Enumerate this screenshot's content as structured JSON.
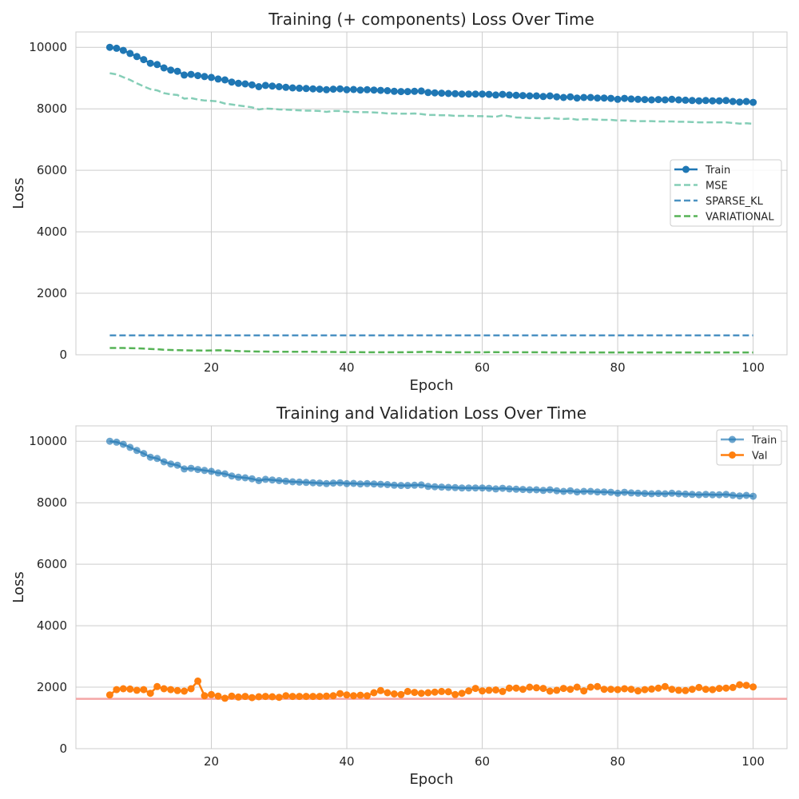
{
  "colors": {
    "train": "#1f77b4",
    "mse": "#66c2a5",
    "sparse_kl": "#1f77b4",
    "variational": "#2ca02c",
    "val": "#ff7f0e",
    "baseline": "#f4a6a6"
  },
  "chart_data": [
    {
      "type": "line",
      "title": "Training (+ components) Loss Over Time",
      "xlabel": "Epoch",
      "ylabel": "Loss",
      "xlim": [
        0,
        105
      ],
      "ylim": [
        0,
        10500
      ],
      "xticks": [
        20,
        40,
        60,
        80,
        100
      ],
      "yticks": [
        0,
        2000,
        4000,
        6000,
        8000,
        10000
      ],
      "grid": true,
      "legend": "center-right",
      "x": [
        5,
        6,
        7,
        8,
        9,
        10,
        11,
        12,
        13,
        14,
        15,
        16,
        17,
        18,
        19,
        20,
        21,
        22,
        23,
        24,
        25,
        26,
        27,
        28,
        29,
        30,
        31,
        32,
        33,
        34,
        35,
        36,
        37,
        38,
        39,
        40,
        41,
        42,
        43,
        44,
        45,
        46,
        47,
        48,
        49,
        50,
        51,
        52,
        53,
        54,
        55,
        56,
        57,
        58,
        59,
        60,
        61,
        62,
        63,
        64,
        65,
        66,
        67,
        68,
        69,
        70,
        71,
        72,
        73,
        74,
        75,
        76,
        77,
        78,
        79,
        80,
        81,
        82,
        83,
        84,
        85,
        86,
        87,
        88,
        89,
        90,
        91,
        92,
        93,
        94,
        95,
        96,
        97,
        98,
        99,
        100
      ],
      "series": [
        {
          "name": "Train",
          "key": "train",
          "style": "solid-marker",
          "values": [
            10000,
            9970,
            9900,
            9800,
            9700,
            9600,
            9480,
            9440,
            9330,
            9260,
            9220,
            9100,
            9120,
            9080,
            9050,
            9020,
            8970,
            8940,
            8870,
            8830,
            8810,
            8780,
            8720,
            8760,
            8740,
            8720,
            8700,
            8680,
            8670,
            8660,
            8650,
            8640,
            8620,
            8640,
            8650,
            8620,
            8630,
            8610,
            8620,
            8610,
            8600,
            8590,
            8570,
            8560,
            8560,
            8570,
            8580,
            8530,
            8520,
            8510,
            8500,
            8490,
            8480,
            8480,
            8480,
            8480,
            8470,
            8450,
            8470,
            8450,
            8440,
            8430,
            8420,
            8420,
            8400,
            8420,
            8390,
            8370,
            8390,
            8350,
            8370,
            8370,
            8350,
            8350,
            8340,
            8310,
            8340,
            8320,
            8310,
            8300,
            8290,
            8300,
            8290,
            8310,
            8290,
            8280,
            8270,
            8260,
            8270,
            8260,
            8260,
            8270,
            8240,
            8220,
            8240,
            8210
          ]
        },
        {
          "name": "MSE",
          "key": "mse",
          "style": "dashed",
          "values": [
            9160,
            9120,
            9030,
            8940,
            8830,
            8730,
            8640,
            8600,
            8510,
            8470,
            8450,
            8330,
            8350,
            8300,
            8270,
            8260,
            8240,
            8170,
            8140,
            8110,
            8080,
            8050,
            7980,
            8010,
            8000,
            7980,
            7970,
            7960,
            7950,
            7940,
            7940,
            7930,
            7900,
            7930,
            7930,
            7900,
            7900,
            7890,
            7890,
            7880,
            7870,
            7850,
            7850,
            7840,
            7840,
            7850,
            7830,
            7800,
            7800,
            7790,
            7790,
            7770,
            7770,
            7770,
            7760,
            7760,
            7750,
            7740,
            7790,
            7760,
            7720,
            7710,
            7700,
            7700,
            7690,
            7700,
            7680,
            7670,
            7680,
            7650,
            7660,
            7660,
            7650,
            7640,
            7640,
            7620,
            7620,
            7610,
            7600,
            7600,
            7600,
            7590,
            7590,
            7590,
            7580,
            7580,
            7570,
            7560,
            7560,
            7560,
            7560,
            7560,
            7540,
            7520,
            7530,
            7510
          ]
        },
        {
          "name": "SPARSE_KL",
          "key": "sparse_kl",
          "style": "dashed",
          "values": [
            630,
            630,
            630,
            630,
            630,
            630,
            630,
            630,
            630,
            630,
            630,
            630,
            630,
            630,
            630,
            630,
            630,
            630,
            630,
            630,
            630,
            630,
            630,
            630,
            630,
            630,
            630,
            630,
            630,
            630,
            630,
            630,
            630,
            630,
            630,
            630,
            630,
            630,
            630,
            630,
            630,
            630,
            630,
            630,
            630,
            630,
            630,
            630,
            630,
            630,
            630,
            630,
            630,
            630,
            630,
            630,
            630,
            630,
            630,
            630,
            630,
            630,
            630,
            630,
            630,
            630,
            630,
            630,
            630,
            630,
            630,
            630,
            630,
            630,
            630,
            630,
            630,
            630,
            630,
            630,
            630,
            630,
            630,
            630,
            630,
            630,
            630,
            630,
            630,
            630,
            630,
            630,
            630,
            630,
            630,
            630
          ]
        },
        {
          "name": "VARIATIONAL",
          "key": "variational",
          "style": "dashed",
          "values": [
            220,
            220,
            220,
            215,
            210,
            200,
            190,
            180,
            165,
            155,
            150,
            145,
            140,
            140,
            135,
            140,
            145,
            140,
            130,
            120,
            115,
            110,
            105,
            105,
            100,
            100,
            100,
            100,
            95,
            95,
            95,
            90,
            90,
            90,
            85,
            85,
            85,
            85,
            80,
            80,
            80,
            80,
            80,
            80,
            85,
            85,
            90,
            95,
            90,
            85,
            80,
            80,
            80,
            80,
            80,
            80,
            85,
            85,
            80,
            80,
            80,
            80,
            80,
            80,
            80,
            75,
            75,
            75,
            75,
            75,
            75,
            75,
            75,
            75,
            75,
            75,
            75,
            75,
            75,
            75,
            75,
            75,
            75,
            75,
            75,
            75,
            75,
            75,
            75,
            75,
            75,
            75,
            75,
            75,
            75,
            75
          ]
        }
      ]
    },
    {
      "type": "line",
      "title": "Training and Validation Loss Over Time",
      "xlabel": "Epoch",
      "ylabel": "Loss",
      "xlim": [
        0,
        105
      ],
      "ylim": [
        0,
        10500
      ],
      "xticks": [
        20,
        40,
        60,
        80,
        100
      ],
      "yticks": [
        0,
        2000,
        4000,
        6000,
        8000,
        10000
      ],
      "grid": true,
      "legend": "top-right",
      "hline": 1620,
      "x": [
        5,
        6,
        7,
        8,
        9,
        10,
        11,
        12,
        13,
        14,
        15,
        16,
        17,
        18,
        19,
        20,
        21,
        22,
        23,
        24,
        25,
        26,
        27,
        28,
        29,
        30,
        31,
        32,
        33,
        34,
        35,
        36,
        37,
        38,
        39,
        40,
        41,
        42,
        43,
        44,
        45,
        46,
        47,
        48,
        49,
        50,
        51,
        52,
        53,
        54,
        55,
        56,
        57,
        58,
        59,
        60,
        61,
        62,
        63,
        64,
        65,
        66,
        67,
        68,
        69,
        70,
        71,
        72,
        73,
        74,
        75,
        76,
        77,
        78,
        79,
        80,
        81,
        82,
        83,
        84,
        85,
        86,
        87,
        88,
        89,
        90,
        91,
        92,
        93,
        94,
        95,
        96,
        97,
        98,
        99,
        100
      ],
      "series": [
        {
          "name": "Train",
          "key": "train",
          "style": "faded-marker",
          "values": [
            10000,
            9970,
            9900,
            9800,
            9700,
            9600,
            9480,
            9440,
            9330,
            9260,
            9220,
            9100,
            9120,
            9080,
            9050,
            9020,
            8970,
            8940,
            8870,
            8830,
            8810,
            8780,
            8720,
            8760,
            8740,
            8720,
            8700,
            8680,
            8670,
            8660,
            8650,
            8640,
            8620,
            8640,
            8650,
            8620,
            8630,
            8610,
            8620,
            8610,
            8600,
            8590,
            8570,
            8560,
            8560,
            8570,
            8580,
            8530,
            8520,
            8510,
            8500,
            8490,
            8480,
            8480,
            8480,
            8480,
            8470,
            8450,
            8470,
            8450,
            8440,
            8430,
            8420,
            8420,
            8400,
            8420,
            8390,
            8370,
            8390,
            8350,
            8370,
            8370,
            8350,
            8350,
            8340,
            8310,
            8340,
            8320,
            8310,
            8300,
            8290,
            8300,
            8290,
            8310,
            8290,
            8280,
            8270,
            8260,
            8270,
            8260,
            8260,
            8270,
            8240,
            8220,
            8240,
            8210
          ]
        },
        {
          "name": "Val",
          "key": "val",
          "style": "solid-marker",
          "values": [
            1750,
            1920,
            1950,
            1940,
            1900,
            1920,
            1800,
            2020,
            1950,
            1920,
            1890,
            1870,
            1950,
            2200,
            1720,
            1760,
            1710,
            1640,
            1710,
            1680,
            1700,
            1660,
            1690,
            1700,
            1690,
            1670,
            1720,
            1700,
            1700,
            1700,
            1700,
            1700,
            1710,
            1720,
            1790,
            1750,
            1720,
            1740,
            1720,
            1820,
            1890,
            1820,
            1780,
            1760,
            1860,
            1830,
            1800,
            1820,
            1840,
            1860,
            1850,
            1760,
            1800,
            1880,
            1960,
            1880,
            1900,
            1910,
            1860,
            1970,
            1970,
            1930,
            2000,
            1980,
            1960,
            1870,
            1900,
            1960,
            1930,
            2000,
            1880,
            2000,
            2020,
            1930,
            1930,
            1920,
            1950,
            1930,
            1880,
            1920,
            1940,
            1970,
            2020,
            1930,
            1900,
            1890,
            1930,
            1990,
            1930,
            1920,
            1960,
            1970,
            1990,
            2080,
            2060,
            2010
          ]
        }
      ]
    }
  ]
}
